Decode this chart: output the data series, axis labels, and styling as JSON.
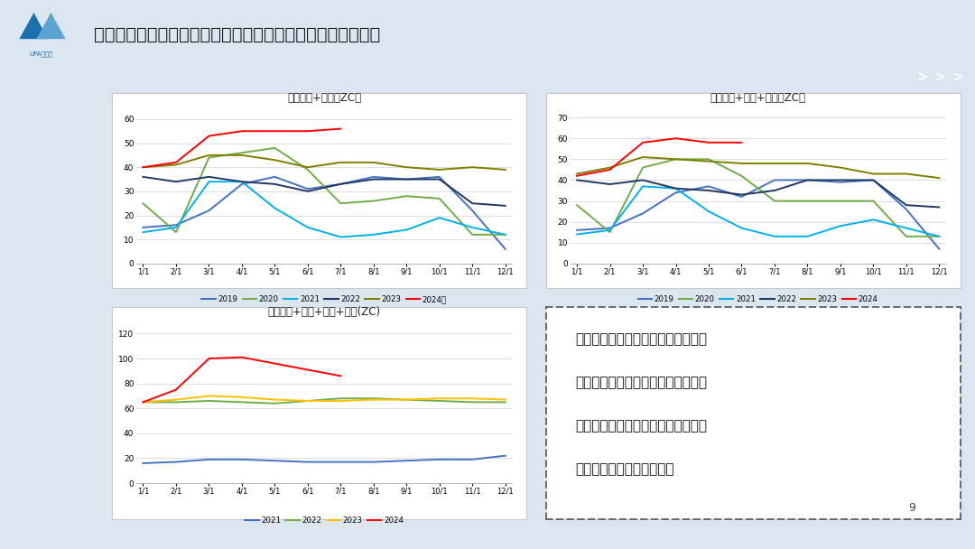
{
  "title": "库存：整体高位小幅下降，未来几周华南及上游料仍去库为主",
  "bg_color": "#dce6f1",
  "header_bg": "#1a6faf",
  "chart_bg": "#ffffff",
  "page_number": "9",
  "chart1_title": "库存华东+华南（ZC）",
  "chart2_title": "库存华东+华南+西南（ZC）",
  "chart3_title": "库存华东+华南+西南+上游(ZC)",
  "x_labels": [
    "1/1",
    "2/1",
    "3/1",
    "4/1",
    "5/1",
    "6/1",
    "7/1",
    "8/1",
    "9/1",
    "10/1",
    "11/1",
    "12/1"
  ],
  "chart1_ylim": [
    0,
    65
  ],
  "chart1_yticks": [
    0,
    10,
    20,
    30,
    40,
    50,
    60
  ],
  "chart1_series": {
    "2019": [
      15,
      16,
      22,
      33,
      36,
      31,
      33,
      36,
      35,
      36,
      22,
      6
    ],
    "2020": [
      25,
      13,
      44,
      46,
      48,
      39,
      25,
      26,
      28,
      27,
      12,
      12
    ],
    "2021": [
      13,
      15,
      34,
      34,
      23,
      15,
      11,
      12,
      14,
      19,
      15,
      12
    ],
    "2022": [
      36,
      34,
      36,
      34,
      33,
      30,
      33,
      35,
      35,
      35,
      25,
      24
    ],
    "2023": [
      40,
      41,
      45,
      45,
      43,
      40,
      42,
      42,
      40,
      39,
      40,
      39
    ],
    "2024": [
      40,
      42,
      53,
      55,
      55,
      55,
      56,
      null,
      null,
      null,
      null,
      null
    ]
  },
  "chart1_colors": {
    "2019": "#4472c4",
    "2020": "#70ad47",
    "2021": "#00b0f0",
    "2022": "#203864",
    "2023": "#7f7f00",
    "2024": "#ff0000"
  },
  "chart1_legend": [
    "2019",
    "2020",
    "2021",
    "2022",
    "2023",
    "2024年"
  ],
  "chart2_ylim": [
    0,
    75
  ],
  "chart2_yticks": [
    0,
    10,
    20,
    30,
    40,
    50,
    60,
    70
  ],
  "chart2_series": {
    "2019": [
      16,
      17,
      24,
      34,
      37,
      32,
      40,
      40,
      39,
      40,
      26,
      7
    ],
    "2020": [
      28,
      15,
      46,
      50,
      50,
      42,
      30,
      30,
      30,
      30,
      13,
      13
    ],
    "2021": [
      14,
      16,
      37,
      36,
      25,
      17,
      13,
      13,
      18,
      21,
      17,
      13
    ],
    "2022": [
      40,
      38,
      40,
      36,
      35,
      33,
      35,
      40,
      40,
      40,
      28,
      27
    ],
    "2023": [
      43,
      46,
      51,
      50,
      49,
      48,
      48,
      48,
      46,
      43,
      43,
      41
    ],
    "2024": [
      42,
      45,
      58,
      60,
      58,
      58,
      null,
      null,
      null,
      null,
      null,
      null
    ]
  },
  "chart2_colors": {
    "2019": "#4472c4",
    "2020": "#70ad47",
    "2021": "#00b0f0",
    "2022": "#203864",
    "2023": "#7f7f00",
    "2024": "#ff0000"
  },
  "chart2_legend": [
    "2019",
    "2020",
    "2021",
    "2022",
    "2023",
    "2024"
  ],
  "chart3_ylim": [
    0,
    130
  ],
  "chart3_yticks": [
    0,
    20,
    40,
    60,
    80,
    100,
    120
  ],
  "chart3_series": {
    "2021": [
      16,
      17,
      19,
      19,
      18,
      17,
      17,
      17,
      18,
      19,
      19,
      22
    ],
    "2022": [
      65,
      65,
      66,
      65,
      64,
      66,
      68,
      68,
      67,
      66,
      65,
      65
    ],
    "2023": [
      65,
      67,
      70,
      69,
      67,
      66,
      66,
      67,
      67,
      68,
      68,
      67
    ],
    "2024": [
      65,
      75,
      100,
      101,
      96,
      91,
      86,
      null,
      null,
      null,
      null,
      null
    ]
  },
  "chart3_colors": {
    "2021": "#4472c4",
    "2022": "#70ad47",
    "2023": "#ffc000",
    "2024": "#ff0000"
  },
  "chart3_legend": [
    "2021",
    "2022",
    "2023",
    "2024"
  ],
  "text_lines": [
    "近期华南库存表现为下降，和洪水导",
    "致装卸困难有关。未来几周大装置集",
    "中检修且渤化意外停车，料华南库存",
    "及上游库存仍以下降为主。"
  ]
}
